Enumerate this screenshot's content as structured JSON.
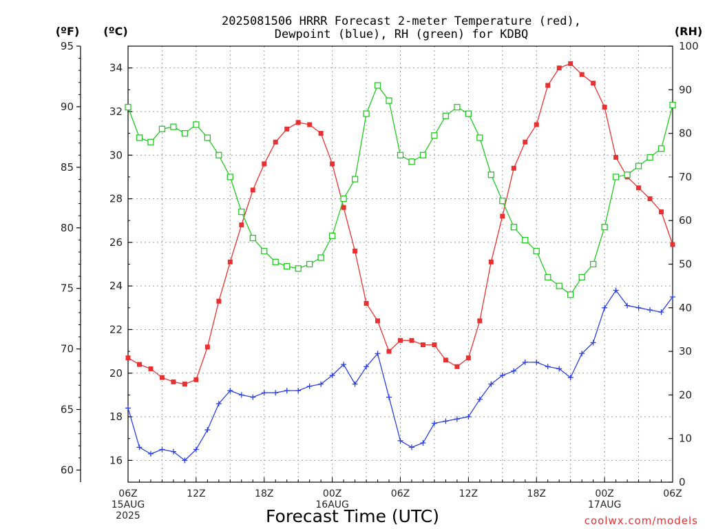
{
  "chart_data": {
    "type": "line",
    "title": "2025081506 HRRR Forecast 2-meter Temperature (red),",
    "subtitle": "Dewpoint (blue), RH (green) for KDBQ",
    "xlabel": "Forecast Time (UTC)",
    "credit": "coolwx.com/models",
    "units": {
      "fahrenheit": "(ºF)",
      "celsius": "(ºC)",
      "rh": "(RH)"
    },
    "grid": true,
    "x_hours": [
      0,
      1,
      2,
      3,
      4,
      5,
      6,
      7,
      8,
      9,
      10,
      11,
      12,
      13,
      14,
      15,
      16,
      17,
      18,
      19,
      20,
      21,
      22,
      23,
      24,
      25,
      26,
      27,
      28,
      29,
      30,
      31,
      32,
      33,
      34,
      35,
      36,
      37,
      38,
      39,
      40,
      41,
      42,
      43,
      44,
      45,
      46,
      47,
      48
    ],
    "xlim": [
      0,
      48
    ],
    "celsius_ylim": [
      15,
      35
    ],
    "fahrenheit_ylim": [
      59,
      95
    ],
    "rh_ylim": [
      0,
      100
    ],
    "fahrenheit_ticks": [
      60,
      65,
      70,
      75,
      80,
      85,
      90,
      95
    ],
    "celsius_ticks": [
      16,
      18,
      20,
      22,
      24,
      26,
      28,
      30,
      32,
      34
    ],
    "rh_ticks": [
      0,
      10,
      20,
      30,
      40,
      50,
      60,
      70,
      80,
      90,
      100
    ],
    "x_ticks": [
      {
        "hour": 0,
        "lines": [
          "06Z",
          "15AUG",
          "2025"
        ]
      },
      {
        "hour": 6,
        "lines": [
          "12Z"
        ]
      },
      {
        "hour": 12,
        "lines": [
          "18Z"
        ]
      },
      {
        "hour": 18,
        "lines": [
          "00Z",
          "16AUG"
        ]
      },
      {
        "hour": 24,
        "lines": [
          "06Z"
        ]
      },
      {
        "hour": 30,
        "lines": [
          "12Z"
        ]
      },
      {
        "hour": 36,
        "lines": [
          "18Z"
        ]
      },
      {
        "hour": 42,
        "lines": [
          "00Z",
          "17AUG"
        ]
      },
      {
        "hour": 48,
        "lines": [
          "06Z"
        ]
      }
    ],
    "series": [
      {
        "name": "Temperature",
        "axis": "celsius",
        "color": "#e83030",
        "marker": "filled-square",
        "values": [
          20.7,
          20.4,
          20.2,
          19.8,
          19.6,
          19.5,
          19.7,
          21.2,
          23.3,
          25.1,
          26.8,
          28.4,
          29.6,
          30.6,
          31.2,
          31.5,
          31.4,
          31.0,
          29.6,
          27.6,
          25.6,
          23.2,
          22.4,
          21.0,
          21.5,
          21.5,
          21.3,
          21.3,
          20.6,
          20.3,
          20.7,
          22.4,
          25.1,
          27.2,
          29.4,
          30.6,
          31.4,
          33.2,
          34.0,
          34.2,
          33.7,
          33.3,
          32.2,
          29.9,
          29.0,
          28.5,
          28.0,
          27.4,
          25.9
        ]
      },
      {
        "name": "Dewpoint",
        "axis": "celsius",
        "color": "#2a3ee0",
        "marker": "plus",
        "values": [
          18.4,
          16.6,
          16.3,
          16.5,
          16.4,
          16.0,
          16.5,
          17.4,
          18.6,
          19.2,
          19.0,
          18.9,
          19.1,
          19.1,
          19.2,
          19.2,
          19.4,
          19.5,
          19.9,
          20.4,
          19.5,
          20.3,
          20.9,
          18.9,
          16.9,
          16.6,
          16.8,
          17.7,
          17.8,
          17.9,
          18.0,
          18.8,
          19.5,
          19.9,
          20.1,
          20.5,
          20.5,
          20.3,
          20.2,
          19.8,
          20.9,
          21.4,
          23.0,
          23.8,
          23.1,
          23.0,
          22.9,
          22.8,
          23.5
        ]
      },
      {
        "name": "RH",
        "axis": "rh",
        "color": "#20c820",
        "marker": "open-square",
        "values": [
          86,
          79,
          78,
          81,
          81.5,
          80,
          82,
          79,
          75,
          70,
          62,
          56,
          53,
          50.5,
          49.5,
          49,
          50,
          51.5,
          56.5,
          65,
          69.5,
          84.5,
          91,
          87.5,
          75,
          73.5,
          75,
          79.5,
          84,
          86,
          84.5,
          79,
          70.5,
          64.5,
          58.5,
          55.5,
          53,
          47,
          45,
          43,
          47,
          50,
          58.5,
          70,
          70.5,
          72.5,
          74.5,
          76.5,
          86.5
        ]
      }
    ]
  }
}
